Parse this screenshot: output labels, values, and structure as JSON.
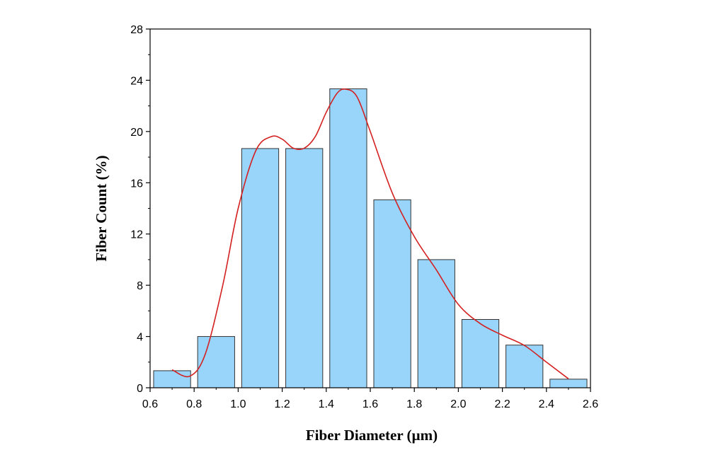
{
  "chart_data": {
    "type": "bar",
    "xlabel": "Fiber Diameter (µm)",
    "ylabel": "Fiber Count (%)",
    "xlim": [
      0.6,
      2.6
    ],
    "ylim": [
      0,
      28
    ],
    "xticks": [
      "0.6",
      "0.8",
      "1.0",
      "1.2",
      "1.4",
      "1.6",
      "1.8",
      "2.0",
      "2.2",
      "2.4",
      "2.6"
    ],
    "yticks": [
      "0",
      "4",
      "8",
      "12",
      "16",
      "20",
      "24",
      "28"
    ],
    "bin_width": 0.2,
    "bin_centers": [
      0.7,
      0.9,
      1.1,
      1.3,
      1.5,
      1.7,
      1.9,
      2.1,
      2.3,
      2.5
    ],
    "values": [
      1.33,
      4.0,
      18.67,
      18.67,
      23.33,
      14.67,
      10.0,
      5.33,
      3.33,
      0.67
    ],
    "fit_curve": {
      "x": [
        0.7,
        0.78,
        0.85,
        0.93,
        1.0,
        1.08,
        1.15,
        1.2,
        1.25,
        1.3,
        1.35,
        1.4,
        1.45,
        1.49,
        1.54,
        1.6,
        1.7,
        1.8,
        1.9,
        2.0,
        2.1,
        2.2,
        2.3,
        2.4,
        2.5
      ],
      "y": [
        1.4,
        0.9,
        2.6,
        8.0,
        14.0,
        18.5,
        19.6,
        19.4,
        18.7,
        18.7,
        19.6,
        21.5,
        23.0,
        23.3,
        22.7,
        20.0,
        15.2,
        11.8,
        9.2,
        6.5,
        5.0,
        4.1,
        3.3,
        2.0,
        0.7
      ]
    },
    "colors": {
      "bar_fill": "#99d5fb",
      "bar_stroke": "#333333",
      "curve": "#d42020",
      "axes": "#000000"
    },
    "grid": false
  }
}
